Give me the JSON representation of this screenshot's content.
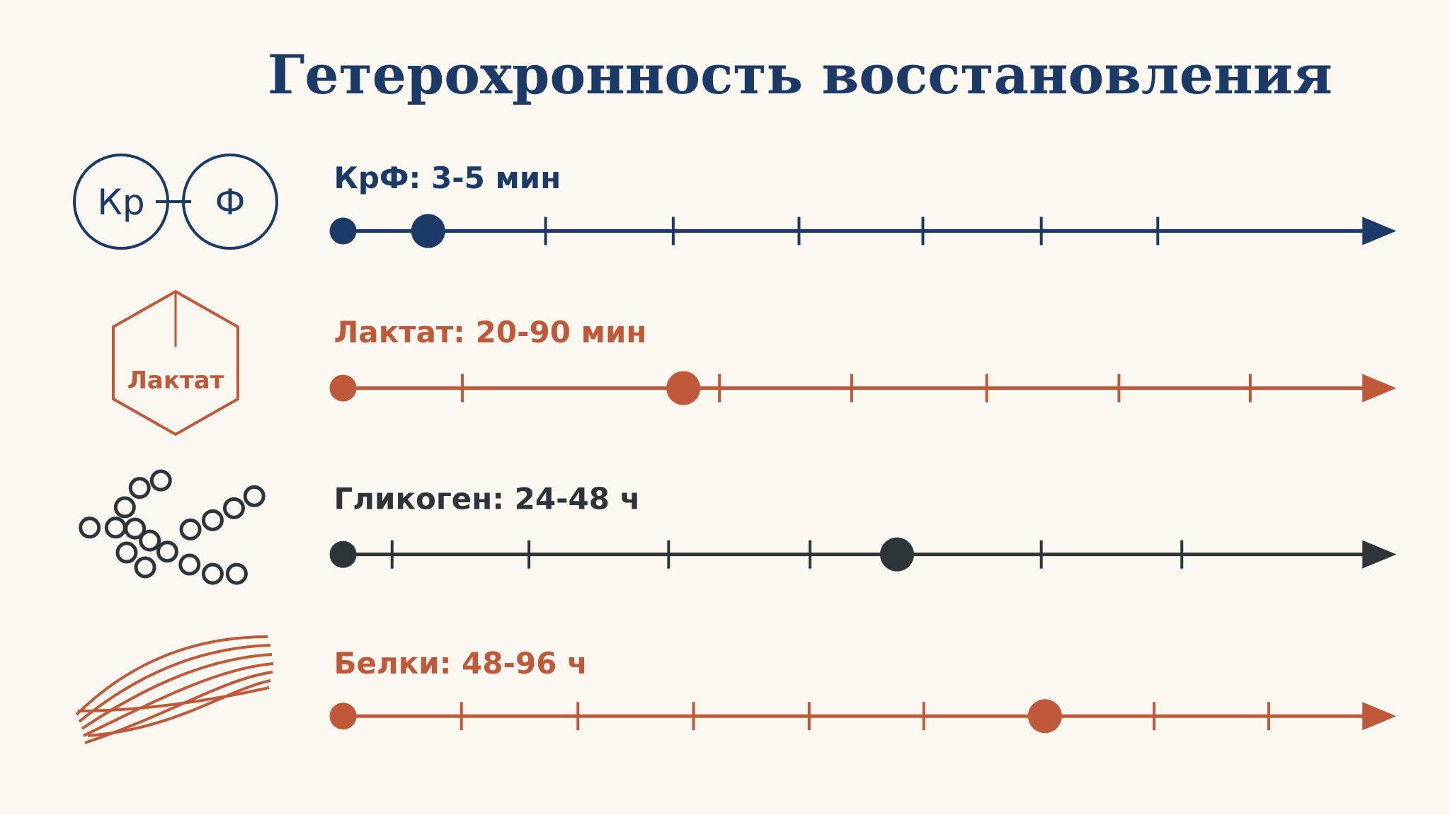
{
  "title": "Гетерохронность восстановления",
  "rows": [
    {
      "label": "КрФ: 3-5 мин",
      "icon_texts": [
        "Кр",
        "Ф"
      ]
    },
    {
      "label": "Лактат: 20-90 мин",
      "icon_texts": [
        "Лактат"
      ]
    },
    {
      "label": "Гликоген: 24-48 ч",
      "icon_texts": []
    },
    {
      "label": "Белки: 48-96 ч",
      "icon_texts": []
    }
  ]
}
